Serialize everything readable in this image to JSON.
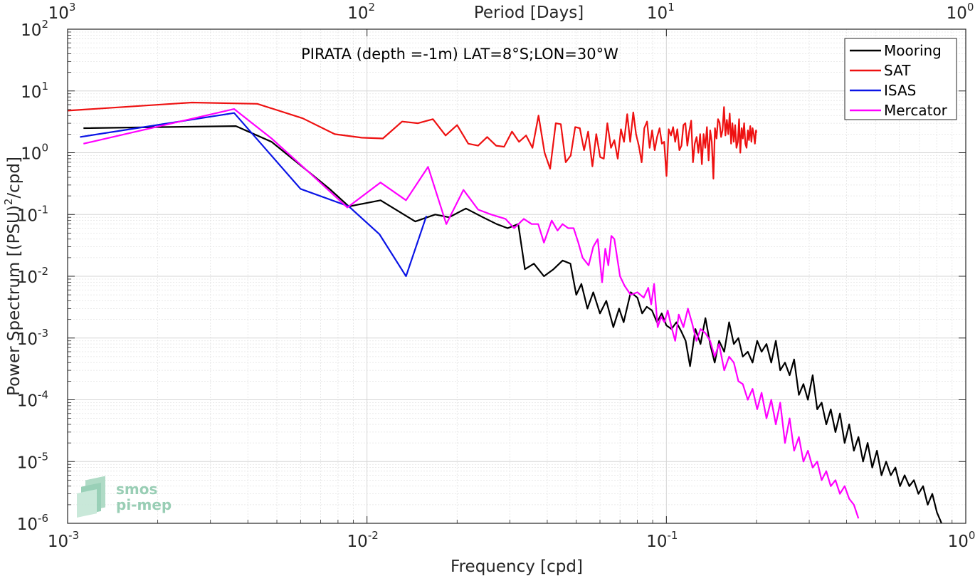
{
  "chart_data": {
    "type": "line",
    "title": "PIRATA (depth =-1m) LAT=8°S;LON=30°W",
    "xlabel": "Frequency [cpd]",
    "ylabel": "Power Spectrum [(PSU)",
    "ylabel_sup": "2",
    "ylabel_tail": "/cpd]",
    "top_xlabel": "Period [Days]",
    "x_scale": "log",
    "y_scale": "log",
    "xlim": [
      0.001,
      1
    ],
    "ylim": [
      1e-06,
      100
    ],
    "grid": true,
    "legend_position": "top-right",
    "x_ticks": [
      {
        "base": "10",
        "exp": "-3",
        "value": 0.001
      },
      {
        "base": "10",
        "exp": "-2",
        "value": 0.01
      },
      {
        "base": "10",
        "exp": "-1",
        "value": 0.1
      },
      {
        "base": "10",
        "exp": "0",
        "value": 1
      }
    ],
    "y_ticks": [
      {
        "base": "10",
        "exp": "-6",
        "value": 1e-06
      },
      {
        "base": "10",
        "exp": "-5",
        "value": 1e-05
      },
      {
        "base": "10",
        "exp": "-4",
        "value": 0.0001
      },
      {
        "base": "10",
        "exp": "-3",
        "value": 0.001
      },
      {
        "base": "10",
        "exp": "-2",
        "value": 0.01
      },
      {
        "base": "10",
        "exp": "-1",
        "value": 0.1
      },
      {
        "base": "10",
        "exp": "0",
        "value": 1
      },
      {
        "base": "10",
        "exp": "1",
        "value": 10
      },
      {
        "base": "10",
        "exp": "2",
        "value": 100
      }
    ],
    "top_ticks": [
      {
        "base": "10",
        "exp": "3",
        "value": 1000
      },
      {
        "base": "10",
        "exp": "2",
        "value": 100
      },
      {
        "base": "10",
        "exp": "1",
        "value": 10
      },
      {
        "base": "10",
        "exp": "0",
        "value": 1
      }
    ],
    "series": [
      {
        "name": "Mooring",
        "color": "#000000",
        "x": [
          0.00113,
          0.00365,
          0.0048,
          0.0062,
          0.0075,
          0.0087,
          0.0111,
          0.0145,
          0.0169,
          0.0188,
          0.0214,
          0.0244,
          0.0271,
          0.0295,
          0.032,
          0.0337,
          0.0361,
          0.039,
          0.042,
          0.045,
          0.0478,
          0.05,
          0.052,
          0.0545,
          0.057,
          0.06,
          0.063,
          0.0665,
          0.0695,
          0.072,
          0.076,
          0.08,
          0.083,
          0.086,
          0.0895,
          0.093,
          0.0965,
          0.1,
          0.104,
          0.108,
          0.112,
          0.116,
          0.12,
          0.125,
          0.13,
          0.135,
          0.14,
          0.145,
          0.15,
          0.156,
          0.162,
          0.168,
          0.174,
          0.18,
          0.187,
          0.194,
          0.201,
          0.208,
          0.216,
          0.224,
          0.232,
          0.24,
          0.249,
          0.258,
          0.267,
          0.277,
          0.287,
          0.297,
          0.308,
          0.319,
          0.33,
          0.342,
          0.354,
          0.367,
          0.38,
          0.394,
          0.408,
          0.423,
          0.438,
          0.454,
          0.47,
          0.487,
          0.505,
          0.523,
          0.542,
          0.562,
          0.582,
          0.603,
          0.625,
          0.648,
          0.671,
          0.695,
          0.72,
          0.746,
          0.773,
          0.801,
          0.83
        ],
        "values": [
          2.5,
          2.7,
          1.5,
          0.55,
          0.26,
          0.135,
          0.17,
          0.077,
          0.1,
          0.09,
          0.125,
          0.09,
          0.07,
          0.06,
          0.07,
          0.013,
          0.016,
          0.01,
          0.013,
          0.018,
          0.016,
          0.005,
          0.0075,
          0.003,
          0.0055,
          0.0025,
          0.004,
          0.0015,
          0.003,
          0.0018,
          0.0055,
          0.0045,
          0.0025,
          0.0032,
          0.0028,
          0.0018,
          0.0025,
          0.0016,
          0.0014,
          0.0018,
          0.0013,
          0.0009,
          0.00035,
          0.0014,
          0.0008,
          0.0021,
          0.0008,
          0.0004,
          0.0009,
          0.0006,
          0.0018,
          0.0008,
          0.001,
          0.0005,
          0.0006,
          0.0004,
          0.0009,
          0.0006,
          0.0008,
          0.0004,
          0.0009,
          0.0003,
          0.0004,
          0.00025,
          0.00045,
          0.00012,
          0.00018,
          0.0001,
          0.00025,
          7e-05,
          9e-05,
          4e-05,
          7e-05,
          3e-05,
          6e-05,
          2e-05,
          4e-05,
          1.5e-05,
          2.5e-05,
          1e-05,
          2e-05,
          8e-06,
          1.5e-05,
          6e-06,
          1e-05,
          6e-06,
          8e-06,
          4e-06,
          6e-06,
          4e-06,
          5e-06,
          3e-06,
          4e-06,
          2e-06,
          3e-06,
          1.5e-06,
          1e-06
        ]
      },
      {
        "name": "SAT",
        "color": "#ee1111",
        "x": [
          0.001,
          0.0026,
          0.0043,
          0.0061,
          0.0078,
          0.0096,
          0.0113,
          0.0131,
          0.0148,
          0.0166,
          0.0183,
          0.02,
          0.0218,
          0.0235,
          0.0252,
          0.027,
          0.0287,
          0.0305,
          0.0322,
          0.034,
          0.0357,
          0.0374,
          0.0392,
          0.0409,
          0.0427,
          0.0444,
          0.0461,
          0.0479,
          0.0496,
          0.0514,
          0.0531,
          0.0548,
          0.0566,
          0.0583,
          0.0601,
          0.0618,
          0.0635,
          0.0653,
          0.067,
          0.0688,
          0.0705,
          0.0722,
          0.074,
          0.0757,
          0.0775,
          0.0792,
          0.0809,
          0.0827,
          0.0844,
          0.0862,
          0.0879,
          0.0896,
          0.0914,
          0.0931,
          0.0949,
          0.0966,
          0.0983,
          0.1001,
          0.1018,
          0.1036,
          0.1053,
          0.107,
          0.1088,
          0.1105,
          0.1123,
          0.114,
          0.1157,
          0.1175,
          0.1192,
          0.121,
          0.1227,
          0.1244,
          0.1262,
          0.1279,
          0.1297,
          0.1314,
          0.1331,
          0.1349,
          0.1366,
          0.1384,
          0.1401,
          0.1418,
          0.1436,
          0.1453,
          0.1471,
          0.1488,
          0.1505,
          0.1523,
          0.154,
          0.1558,
          0.1575,
          0.1592,
          0.161,
          0.1627,
          0.1645,
          0.1662,
          0.1679,
          0.1697,
          0.1714,
          0.1732,
          0.1749,
          0.1766,
          0.1784,
          0.1801,
          0.1819,
          0.1836,
          0.1853,
          0.1871,
          0.1888,
          0.1906,
          0.1923,
          0.194,
          0.1958,
          0.1975,
          0.1993,
          0.2
        ],
        "values": [
          4.8,
          6.5,
          6.2,
          3.6,
          2.0,
          1.75,
          1.7,
          3.2,
          3.0,
          3.5,
          1.9,
          2.8,
          1.4,
          1.3,
          1.8,
          1.3,
          1.25,
          2.2,
          1.5,
          1.9,
          1.2,
          4.0,
          1.0,
          0.55,
          3.0,
          2.9,
          0.7,
          0.9,
          2.6,
          2.5,
          1.1,
          2.2,
          0.6,
          2.0,
          0.85,
          0.8,
          3.0,
          1.2,
          1.6,
          0.8,
          2.4,
          1.5,
          4.2,
          1.5,
          4.5,
          2.0,
          1.3,
          0.7,
          2.5,
          3.2,
          1.2,
          2.3,
          1.1,
          1.8,
          2.5,
          1.4,
          1.5,
          0.42,
          2.4,
          1.9,
          2.6,
          1.5,
          2.4,
          1.1,
          1.3,
          2.8,
          3.0,
          1.3,
          2.2,
          3.3,
          0.7,
          1.4,
          1.8,
          1.0,
          2.0,
          0.65,
          2.0,
          1.2,
          2.6,
          0.75,
          2.3,
          1.5,
          0.38,
          2.5,
          1.7,
          3.5,
          3.1,
          1.8,
          2.3,
          5.5,
          1.9,
          3.4,
          2.0,
          4.3,
          1.4,
          3.0,
          1.5,
          2.8,
          1.2,
          1.5,
          3.5,
          1.0,
          2.5,
          1.7,
          3.0,
          1.4,
          1.2,
          2.3,
          1.6,
          2.7,
          1.5,
          2.5,
          2.0,
          1.4,
          2.3,
          2.1
        ]
      },
      {
        "name": "ISAS",
        "color": "#0a14e6",
        "x": [
          0.0011,
          0.0036,
          0.006,
          0.0087,
          0.011,
          0.0135,
          0.0158
        ],
        "values": [
          1.8,
          4.4,
          0.26,
          0.135,
          0.048,
          0.01,
          0.095
        ]
      },
      {
        "name": "Mercator",
        "color": "#ff00ff",
        "x": [
          0.00113,
          0.0036,
          0.0048,
          0.0065,
          0.0086,
          0.0111,
          0.0135,
          0.016,
          0.0184,
          0.021,
          0.0235,
          0.026,
          0.029,
          0.031,
          0.0334,
          0.0355,
          0.0373,
          0.039,
          0.0414,
          0.0433,
          0.045,
          0.047,
          0.049,
          0.0508,
          0.0525,
          0.055,
          0.057,
          0.059,
          0.061,
          0.0625,
          0.064,
          0.0655,
          0.067,
          0.07,
          0.0725,
          0.076,
          0.08,
          0.084,
          0.087,
          0.089,
          0.091,
          0.0935,
          0.096,
          0.0985,
          0.101,
          0.104,
          0.107,
          0.11,
          0.114,
          0.118,
          0.122,
          0.126,
          0.13,
          0.135,
          0.14,
          0.145,
          0.15,
          0.156,
          0.162,
          0.168,
          0.174,
          0.18,
          0.187,
          0.194,
          0.201,
          0.208,
          0.216,
          0.224,
          0.232,
          0.24,
          0.249,
          0.258,
          0.267,
          0.277,
          0.287,
          0.297,
          0.308,
          0.319,
          0.33,
          0.342,
          0.354,
          0.367,
          0.38,
          0.394,
          0.408,
          0.423,
          0.438
        ],
        "values": [
          1.4,
          5.1,
          1.7,
          0.45,
          0.13,
          0.33,
          0.17,
          0.59,
          0.07,
          0.25,
          0.12,
          0.1,
          0.085,
          0.06,
          0.085,
          0.07,
          0.07,
          0.035,
          0.08,
          0.055,
          0.07,
          0.06,
          0.06,
          0.035,
          0.02,
          0.015,
          0.03,
          0.04,
          0.008,
          0.028,
          0.015,
          0.045,
          0.04,
          0.01,
          0.007,
          0.005,
          0.0055,
          0.0045,
          0.0065,
          0.0035,
          0.0075,
          0.0015,
          0.0022,
          0.0018,
          0.0028,
          0.0015,
          0.0009,
          0.0024,
          0.0015,
          0.003,
          0.0017,
          0.0009,
          0.0014,
          0.0012,
          0.0009,
          0.0005,
          0.0008,
          0.0003,
          0.0005,
          0.0004,
          0.0002,
          0.00018,
          0.0001,
          0.00015,
          7e-05,
          0.00013,
          5e-05,
          0.0001,
          4e-05,
          9e-05,
          2e-05,
          5e-05,
          1.5e-05,
          2.5e-05,
          1e-05,
          1.5e-05,
          8e-06,
          1e-05,
          5e-06,
          7e-06,
          4e-06,
          5e-06,
          3e-06,
          4e-06,
          2.5e-06,
          2e-06,
          1.2e-06
        ]
      }
    ],
    "watermark": {
      "line1": "smos",
      "line2": "pi-mep"
    }
  }
}
